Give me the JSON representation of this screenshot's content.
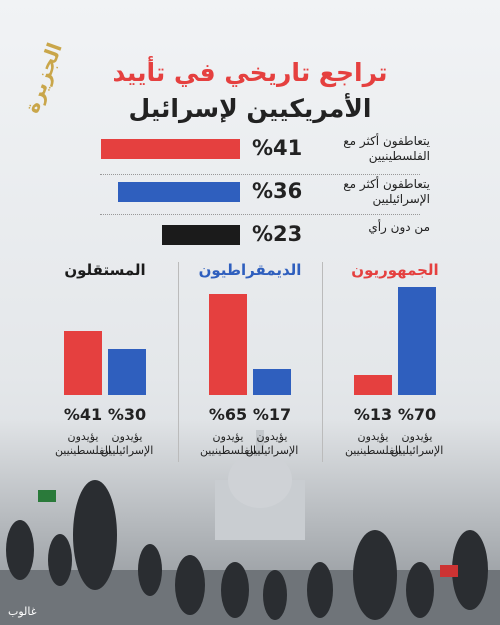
{
  "logo": "الجزيرة",
  "credit": "غالوب",
  "title": "تراجع تاريخي في تأييد",
  "subtitle": "الأمريكيين لإسرائيل",
  "chart_data": [
    {
      "type": "hbar",
      "categories": [
        "يتعاطفون أكثر مع الفلسطينيين",
        "يتعاطفون أكثر مع الإسرائيليين",
        "من دون رأي"
      ],
      "values": [
        41,
        36,
        23
      ],
      "value_labels": [
        "%41",
        "%36",
        "%23"
      ],
      "colors": [
        "#e5403f",
        "#2f5fbe",
        "#1b1b1b"
      ]
    },
    {
      "type": "bar",
      "title": "الجمهوريون",
      "title_color": "#e5403f",
      "categories": [
        "يؤيدون الإسرائيليين",
        "يؤيدون الفلسطينيين"
      ],
      "values": [
        70,
        13
      ],
      "value_labels": [
        "%70",
        "%13"
      ],
      "colors": [
        "#2f5fbe",
        "#e5403f"
      ]
    },
    {
      "type": "bar",
      "title": "الديمقراطيون",
      "title_color": "#2f5fbe",
      "categories": [
        "يؤيدون الإسرائيليين",
        "يؤيدون الفلسطينيين"
      ],
      "values": [
        17,
        65
      ],
      "value_labels": [
        "%17",
        "%65"
      ],
      "colors": [
        "#2f5fbe",
        "#e5403f"
      ]
    },
    {
      "type": "bar",
      "title": "المستقلون",
      "title_color": "#1b1b1b",
      "categories": [
        "يؤيدون الإسرائيليين",
        "يؤيدون الفلسطينيين"
      ],
      "values": [
        30,
        41
      ],
      "value_labels": [
        "%30",
        "%41"
      ],
      "colors": [
        "#2f5fbe",
        "#e5403f"
      ]
    }
  ]
}
